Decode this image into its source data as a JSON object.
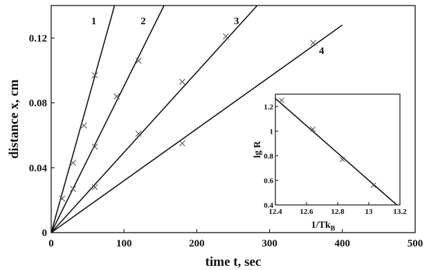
{
  "chart_data": [
    {
      "type": "scatter",
      "role": "main",
      "xlabel": "time t, sec",
      "ylabel": "distance x, cm",
      "xlim": [
        0,
        500
      ],
      "ylim": [
        0,
        0.14
      ],
      "xticks": [
        "0",
        "100",
        "200",
        "300",
        "400",
        "500"
      ],
      "yticks": [
        "0",
        "0.04",
        "0.08",
        "0.12"
      ],
      "grid": false,
      "series": [
        {
          "label": "1",
          "slope": 0.0016,
          "fit_end": [
            87,
            0.14
          ],
          "points": [
            {
              "x": 15,
              "y": 0.021
            },
            {
              "x": 30,
              "y": 0.043
            },
            {
              "x": 45,
              "y": 0.066
            },
            {
              "x": 60,
              "y": 0.097
            }
          ]
        },
        {
          "label": "2",
          "slope": 0.000905,
          "fit_end": [
            155,
            0.14
          ],
          "points": [
            {
              "x": 30,
              "y": 0.027
            },
            {
              "x": 60,
              "y": 0.053
            },
            {
              "x": 90,
              "y": 0.084
            },
            {
              "x": 120,
              "y": 0.106
            }
          ]
        },
        {
          "label": "3",
          "slope": 0.000495,
          "fit_end": [
            283,
            0.14
          ],
          "points": [
            {
              "x": 60,
              "y": 0.028
            },
            {
              "x": 120,
              "y": 0.061
            },
            {
              "x": 180,
              "y": 0.093
            },
            {
              "x": 240,
              "y": 0.121
            }
          ]
        },
        {
          "label": "4",
          "slope": 0.00032,
          "fit_end": [
            400,
            0.128
          ],
          "points": [
            {
              "x": 180,
              "y": 0.055
            },
            {
              "x": 360,
              "y": 0.117
            }
          ]
        }
      ]
    },
    {
      "type": "scatter",
      "role": "inset",
      "xlabel": "1/Tk",
      "xlabel_sub": "B",
      "ylabel": "lg R",
      "xlim": [
        12.4,
        13.2
      ],
      "ylim": [
        0.4,
        1.3
      ],
      "xticks": [
        "12.4",
        "12.6",
        "12.8",
        "13",
        "13.2"
      ],
      "yticks": [
        "0.4",
        "0.6",
        "0.8",
        "1",
        "1.2"
      ],
      "fit": [
        [
          12.4,
          1.265
        ],
        [
          13.18,
          0.4
        ]
      ],
      "points": [
        {
          "x": 12.44,
          "y": 1.25
        },
        {
          "x": 12.64,
          "y": 1.015
        },
        {
          "x": 12.83,
          "y": 0.77
        },
        {
          "x": 13.03,
          "y": 0.56
        }
      ]
    }
  ]
}
